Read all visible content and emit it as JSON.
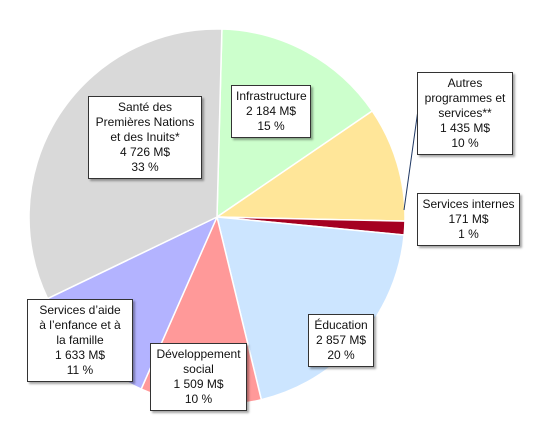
{
  "chart_data": {
    "type": "pie",
    "title": "",
    "slices": [
      {
        "name": "Infrastructure",
        "name_lines": [
          "Infrastructure"
        ],
        "value_text": "2 184 M$",
        "percent_text": "15 %",
        "value": 2184,
        "color": "#ccffcc"
      },
      {
        "name": "Autres programmes et services**",
        "name_lines": [
          "Autres",
          "programmes et",
          "services**"
        ],
        "value_text": "1 435 M$",
        "percent_text": "10 %",
        "value": 1435,
        "color": "#ffe699"
      },
      {
        "name": "Services internes",
        "name_lines": [
          "Services internes"
        ],
        "value_text": "171 M$",
        "percent_text": "1 %",
        "value": 171,
        "color": "#a50021"
      },
      {
        "name": "Éducation",
        "name_lines": [
          "Éducation"
        ],
        "value_text": "2 857 M$",
        "percent_text": "20 %",
        "value": 2857,
        "color": "#cce5ff"
      },
      {
        "name": "Développement social",
        "name_lines": [
          "Développement",
          "social"
        ],
        "value_text": "1 509 M$",
        "percent_text": "10 %",
        "value": 1509,
        "color": "#ff9999"
      },
      {
        "name": "Services d'aide à l'enfance et à la famille",
        "name_lines": [
          "Services d’aide",
          "à l’enfance et à",
          "la famille"
        ],
        "value_text": "1 633 M$",
        "percent_text": "11 %",
        "value": 1633,
        "color": "#b3b3ff"
      },
      {
        "name": "Santé des Premières Nations et des Inuits*",
        "name_lines": [
          "Santé des",
          "Premières Nations",
          "et des Inuits*"
        ],
        "value_text": "4 726 M$",
        "percent_text": "33 %",
        "value": 4726,
        "color": "#d9d9d9"
      }
    ],
    "legend": "none"
  }
}
